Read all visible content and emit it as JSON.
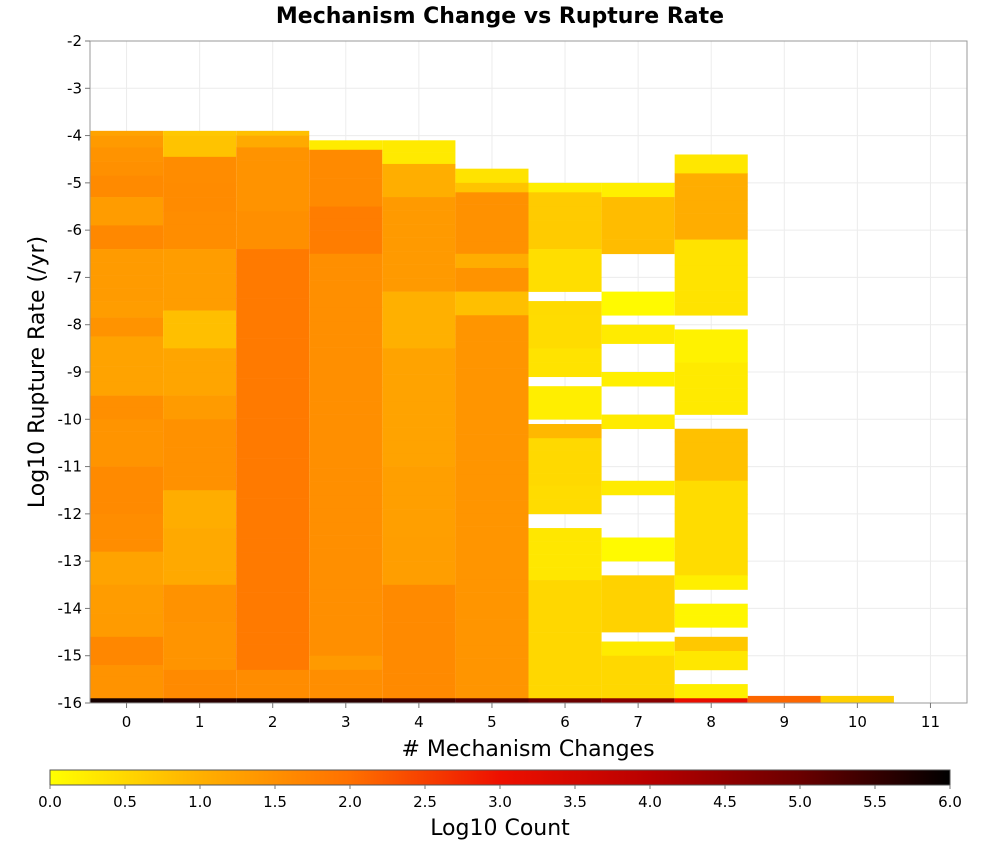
{
  "chart_data": {
    "type": "heatmap",
    "title": "Mechanism Change vs Rupture Rate",
    "xlabel": "# Mechanism Changes",
    "ylabel": "Log10 Rupture Rate (/yr)",
    "xlim": [
      -0.5,
      11.5
    ],
    "ylim": [
      -16,
      -2
    ],
    "x_ticks": [
      "0",
      "1",
      "2",
      "3",
      "4",
      "5",
      "6",
      "7",
      "8",
      "9",
      "10",
      "11"
    ],
    "y_ticks": [
      "-2",
      "-3",
      "-4",
      "-5",
      "-6",
      "-7",
      "-8",
      "-9",
      "-10",
      "-11",
      "-12",
      "-13",
      "-14",
      "-15",
      "-16"
    ],
    "grid": true,
    "y_bin_width": 0.28,
    "colorbar": {
      "label": "Log10 Count",
      "range": [
        0,
        6
      ],
      "ticks": [
        "0.0",
        "0.5",
        "1.0",
        "1.5",
        "2.0",
        "2.5",
        "3.0",
        "3.5",
        "4.0",
        "4.5",
        "5.0",
        "5.5",
        "6.0"
      ],
      "placement": "bottom",
      "colors": [
        "#ffff00",
        "#ffb000",
        "#ff7000",
        "#ee1000",
        "#b80000",
        "#6a0000",
        "#000000"
      ]
    },
    "columns": [
      {
        "x": 0,
        "bins": [
          {
            "from": -4.0,
            "to": -3.9,
            "v": 1.2
          },
          {
            "from": -4.25,
            "to": -4.0,
            "v": 1.35
          },
          {
            "from": -4.55,
            "to": -4.25,
            "v": 1.45
          },
          {
            "from": -4.85,
            "to": -4.55,
            "v": 1.5
          },
          {
            "from": -5.3,
            "to": -4.85,
            "v": 1.6
          },
          {
            "from": -5.9,
            "to": -5.3,
            "v": 1.45
          },
          {
            "from": -6.4,
            "to": -5.9,
            "v": 1.55
          },
          {
            "from": -7.5,
            "to": -6.4,
            "v": 1.4
          },
          {
            "from": -7.85,
            "to": -7.5,
            "v": 1.3
          },
          {
            "from": -8.25,
            "to": -7.85,
            "v": 1.45
          },
          {
            "from": -9.5,
            "to": -8.25,
            "v": 1.35
          },
          {
            "from": -10.0,
            "to": -9.5,
            "v": 1.45
          },
          {
            "from": -11.0,
            "to": -10.0,
            "v": 1.5
          },
          {
            "from": -12.0,
            "to": -11.0,
            "v": 1.45
          },
          {
            "from": -12.8,
            "to": -12.0,
            "v": 1.55
          },
          {
            "from": -13.5,
            "to": -12.8,
            "v": 1.35
          },
          {
            "from": -14.1,
            "to": -13.5,
            "v": 1.25
          },
          {
            "from": -14.6,
            "to": -14.1,
            "v": 1.4
          },
          {
            "from": -15.2,
            "to": -14.6,
            "v": 1.5
          },
          {
            "from": -15.9,
            "to": -15.2,
            "v": 1.45
          },
          {
            "from": -16.0,
            "to": -15.9,
            "v": 5.8
          }
        ]
      },
      {
        "x": 1,
        "bins": [
          {
            "from": -4.0,
            "to": -3.9,
            "v": 0.7
          },
          {
            "from": -4.45,
            "to": -4.0,
            "v": 0.9
          },
          {
            "from": -5.0,
            "to": -4.45,
            "v": 1.5
          },
          {
            "from": -5.6,
            "to": -5.0,
            "v": 1.65
          },
          {
            "from": -6.4,
            "to": -5.6,
            "v": 1.4
          },
          {
            "from": -7.7,
            "to": -6.4,
            "v": 1.3
          },
          {
            "from": -8.5,
            "to": -7.7,
            "v": 0.95
          },
          {
            "from": -9.5,
            "to": -8.5,
            "v": 1.1
          },
          {
            "from": -10.0,
            "to": -9.5,
            "v": 1.4
          },
          {
            "from": -11.5,
            "to": -10.0,
            "v": 1.35
          },
          {
            "from": -12.3,
            "to": -11.5,
            "v": 1.05
          },
          {
            "from": -13.5,
            "to": -12.3,
            "v": 1.25
          },
          {
            "from": -14.3,
            "to": -13.5,
            "v": 1.4
          },
          {
            "from": -15.3,
            "to": -14.3,
            "v": 1.5
          },
          {
            "from": -15.9,
            "to": -15.3,
            "v": 1.45
          },
          {
            "from": -16.0,
            "to": -15.9,
            "v": 5.6
          }
        ]
      },
      {
        "x": 2,
        "bins": [
          {
            "from": -4.0,
            "to": -3.9,
            "v": 0.8
          },
          {
            "from": -4.25,
            "to": -4.0,
            "v": 1.1
          },
          {
            "from": -5.6,
            "to": -4.25,
            "v": 1.6
          },
          {
            "from": -6.4,
            "to": -5.6,
            "v": 1.45
          },
          {
            "from": -6.6,
            "to": -6.4,
            "v": 1.85
          },
          {
            "from": -14.5,
            "to": -6.6,
            "v": 1.7
          },
          {
            "from": -15.3,
            "to": -14.5,
            "v": 1.85
          },
          {
            "from": -15.9,
            "to": -15.3,
            "v": 1.7
          },
          {
            "from": -16.0,
            "to": -15.9,
            "v": 5.7
          }
        ]
      },
      {
        "x": 3,
        "bins": [
          {
            "from": -4.3,
            "to": -4.1,
            "v": 0.25
          },
          {
            "from": -5.5,
            "to": -4.3,
            "v": 1.45
          },
          {
            "from": -6.5,
            "to": -5.5,
            "v": 1.8
          },
          {
            "from": -15.0,
            "to": -6.5,
            "v": 1.65
          },
          {
            "from": -15.3,
            "to": -15.0,
            "v": 1.35
          },
          {
            "from": -15.9,
            "to": -15.3,
            "v": 1.6
          },
          {
            "from": -16.0,
            "to": -15.9,
            "v": 5.6
          }
        ]
      },
      {
        "x": 4,
        "bins": [
          {
            "from": -4.6,
            "to": -4.1,
            "v": 0.2
          },
          {
            "from": -5.3,
            "to": -4.6,
            "v": 1.1
          },
          {
            "from": -7.3,
            "to": -5.3,
            "v": 1.2
          },
          {
            "from": -8.5,
            "to": -7.3,
            "v": 1.0
          },
          {
            "from": -11.0,
            "to": -8.5,
            "v": 1.35
          },
          {
            "from": -12.5,
            "to": -11.0,
            "v": 1.2
          },
          {
            "from": -13.5,
            "to": -12.5,
            "v": 1.35
          },
          {
            "from": -15.9,
            "to": -13.5,
            "v": 1.45
          },
          {
            "from": -16.0,
            "to": -15.9,
            "v": 5.4
          }
        ]
      },
      {
        "x": 5,
        "bins": [
          {
            "from": -5.0,
            "to": -4.7,
            "v": 0.35
          },
          {
            "from": -5.2,
            "to": -5.0,
            "v": 0.75
          },
          {
            "from": -6.5,
            "to": -5.2,
            "v": 1.55
          },
          {
            "from": -6.8,
            "to": -6.5,
            "v": 1.05
          },
          {
            "from": -7.3,
            "to": -6.8,
            "v": 1.45
          },
          {
            "from": -7.8,
            "to": -7.3,
            "v": 0.95
          },
          {
            "from": -15.9,
            "to": -7.8,
            "v": 1.35
          },
          {
            "from": -16.0,
            "to": -15.9,
            "v": 5.2
          }
        ]
      },
      {
        "x": 6,
        "bins": [
          {
            "from": -5.2,
            "to": -5.0,
            "v": 0.2
          },
          {
            "from": -6.4,
            "to": -5.2,
            "v": 0.8
          },
          {
            "from": -7.3,
            "to": -6.4,
            "v": 0.35
          },
          {
            "from": -7.8,
            "to": -7.5,
            "v": 0.45
          },
          {
            "from": -8.5,
            "to": -7.8,
            "v": 0.3
          },
          {
            "from": -9.1,
            "to": -8.5,
            "v": 0.35
          },
          {
            "from": -10.0,
            "to": -9.3,
            "v": 0.35
          },
          {
            "from": -10.4,
            "to": -10.1,
            "v": 0.9
          },
          {
            "from": -11.4,
            "to": -10.4,
            "v": 0.55
          },
          {
            "from": -12.0,
            "to": -11.4,
            "v": 0.3
          },
          {
            "from": -13.4,
            "to": -12.3,
            "v": 0.3
          },
          {
            "from": -15.9,
            "to": -13.4,
            "v": 0.65
          },
          {
            "from": -16.0,
            "to": -15.9,
            "v": 5.0
          }
        ]
      },
      {
        "x": 7,
        "bins": [
          {
            "from": -5.3,
            "to": -5.0,
            "v": 0.2
          },
          {
            "from": -6.5,
            "to": -5.3,
            "v": 0.85
          },
          {
            "from": -7.8,
            "to": -7.3,
            "v": 0.2
          },
          {
            "from": -8.4,
            "to": -8.0,
            "v": 0.25
          },
          {
            "from": -9.3,
            "to": -9.0,
            "v": 0.2
          },
          {
            "from": -10.2,
            "to": -9.9,
            "v": 0.25
          },
          {
            "from": -11.6,
            "to": -11.3,
            "v": 0.25
          },
          {
            "from": -13.0,
            "to": -12.5,
            "v": 0.2
          },
          {
            "from": -14.5,
            "to": -13.3,
            "v": 0.5
          },
          {
            "from": -15.0,
            "to": -14.7,
            "v": 0.25
          },
          {
            "from": -15.9,
            "to": -15.0,
            "v": 0.35
          },
          {
            "from": -16.0,
            "to": -15.9,
            "v": 4.6
          }
        ]
      },
      {
        "x": 8,
        "bins": [
          {
            "from": -4.8,
            "to": -4.4,
            "v": 0.3
          },
          {
            "from": -6.2,
            "to": -4.8,
            "v": 0.9
          },
          {
            "from": -7.8,
            "to": -6.2,
            "v": 0.35
          },
          {
            "from": -8.8,
            "to": -8.1,
            "v": 0.3
          },
          {
            "from": -9.9,
            "to": -8.8,
            "v": 0.2
          },
          {
            "from": -11.3,
            "to": -10.2,
            "v": 0.85
          },
          {
            "from": -13.3,
            "to": -11.3,
            "v": 0.3
          },
          {
            "from": -13.6,
            "to": -13.3,
            "v": 0.2
          },
          {
            "from": -14.4,
            "to": -13.9,
            "v": 0.25
          },
          {
            "from": -14.9,
            "to": -14.6,
            "v": 0.7
          },
          {
            "from": -15.3,
            "to": -14.9,
            "v": 0.3
          },
          {
            "from": -15.9,
            "to": -15.6,
            "v": 0.2
          },
          {
            "from": -16.0,
            "to": -15.9,
            "v": 3.1
          }
        ]
      },
      {
        "x": 9,
        "bins": [
          {
            "from": -16.0,
            "to": -15.85,
            "v": 2.1
          }
        ]
      },
      {
        "x": 10,
        "bins": [
          {
            "from": -16.0,
            "to": -15.85,
            "v": 0.6
          }
        ]
      }
    ]
  }
}
